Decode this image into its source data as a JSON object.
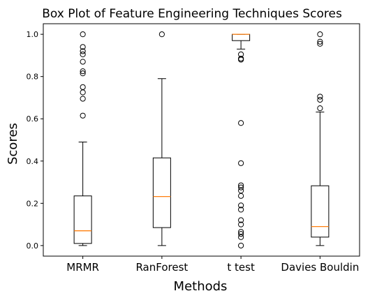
{
  "chart_data": {
    "type": "box",
    "title": "Box Plot of Feature Engineering Techniques Scores",
    "xlabel": "Methods",
    "ylabel": "Scores",
    "ylim": [
      -0.05,
      1.05
    ],
    "yticks": [
      0.0,
      0.2,
      0.4,
      0.6,
      0.8,
      1.0
    ],
    "ytick_labels": [
      "0.0",
      "0.2",
      "0.4",
      "0.6",
      "0.8",
      "1.0"
    ],
    "grid": false,
    "colors": {
      "box": "#000000",
      "median": "#ff7f0e",
      "outlier": "#000000"
    },
    "categories": [
      "MRMR",
      "RanForest",
      "t test",
      "Davies Bouldin"
    ],
    "boxes": [
      {
        "name": "MRMR",
        "whisker_low": 0.0,
        "q1": 0.01,
        "median": 0.07,
        "q3": 0.235,
        "whisker_high": 0.49,
        "outliers": [
          0.615,
          0.695,
          0.725,
          0.75,
          0.815,
          0.825,
          0.87,
          0.905,
          0.92,
          0.94,
          1.0
        ]
      },
      {
        "name": "RanForest",
        "whisker_low": 0.0,
        "q1": 0.085,
        "median": 0.232,
        "q3": 0.415,
        "whisker_high": 0.79,
        "outliers": [
          1.0
        ]
      },
      {
        "name": "t test",
        "whisker_low": 0.93,
        "q1": 0.97,
        "median": 1.0,
        "q3": 1.0,
        "whisker_high": 1.0,
        "outliers": [
          0.905,
          0.885,
          0.88,
          0.58,
          0.39,
          0.285,
          0.275,
          0.26,
          0.235,
          0.19,
          0.17,
          0.12,
          0.1,
          0.065,
          0.055,
          0.04,
          0.0
        ]
      },
      {
        "name": "Davies Bouldin",
        "whisker_low": 0.0,
        "q1": 0.04,
        "median": 0.09,
        "q3": 0.283,
        "whisker_high": 0.632,
        "outliers": [
          0.65,
          0.69,
          0.705,
          0.955,
          0.965,
          1.0
        ]
      }
    ]
  }
}
